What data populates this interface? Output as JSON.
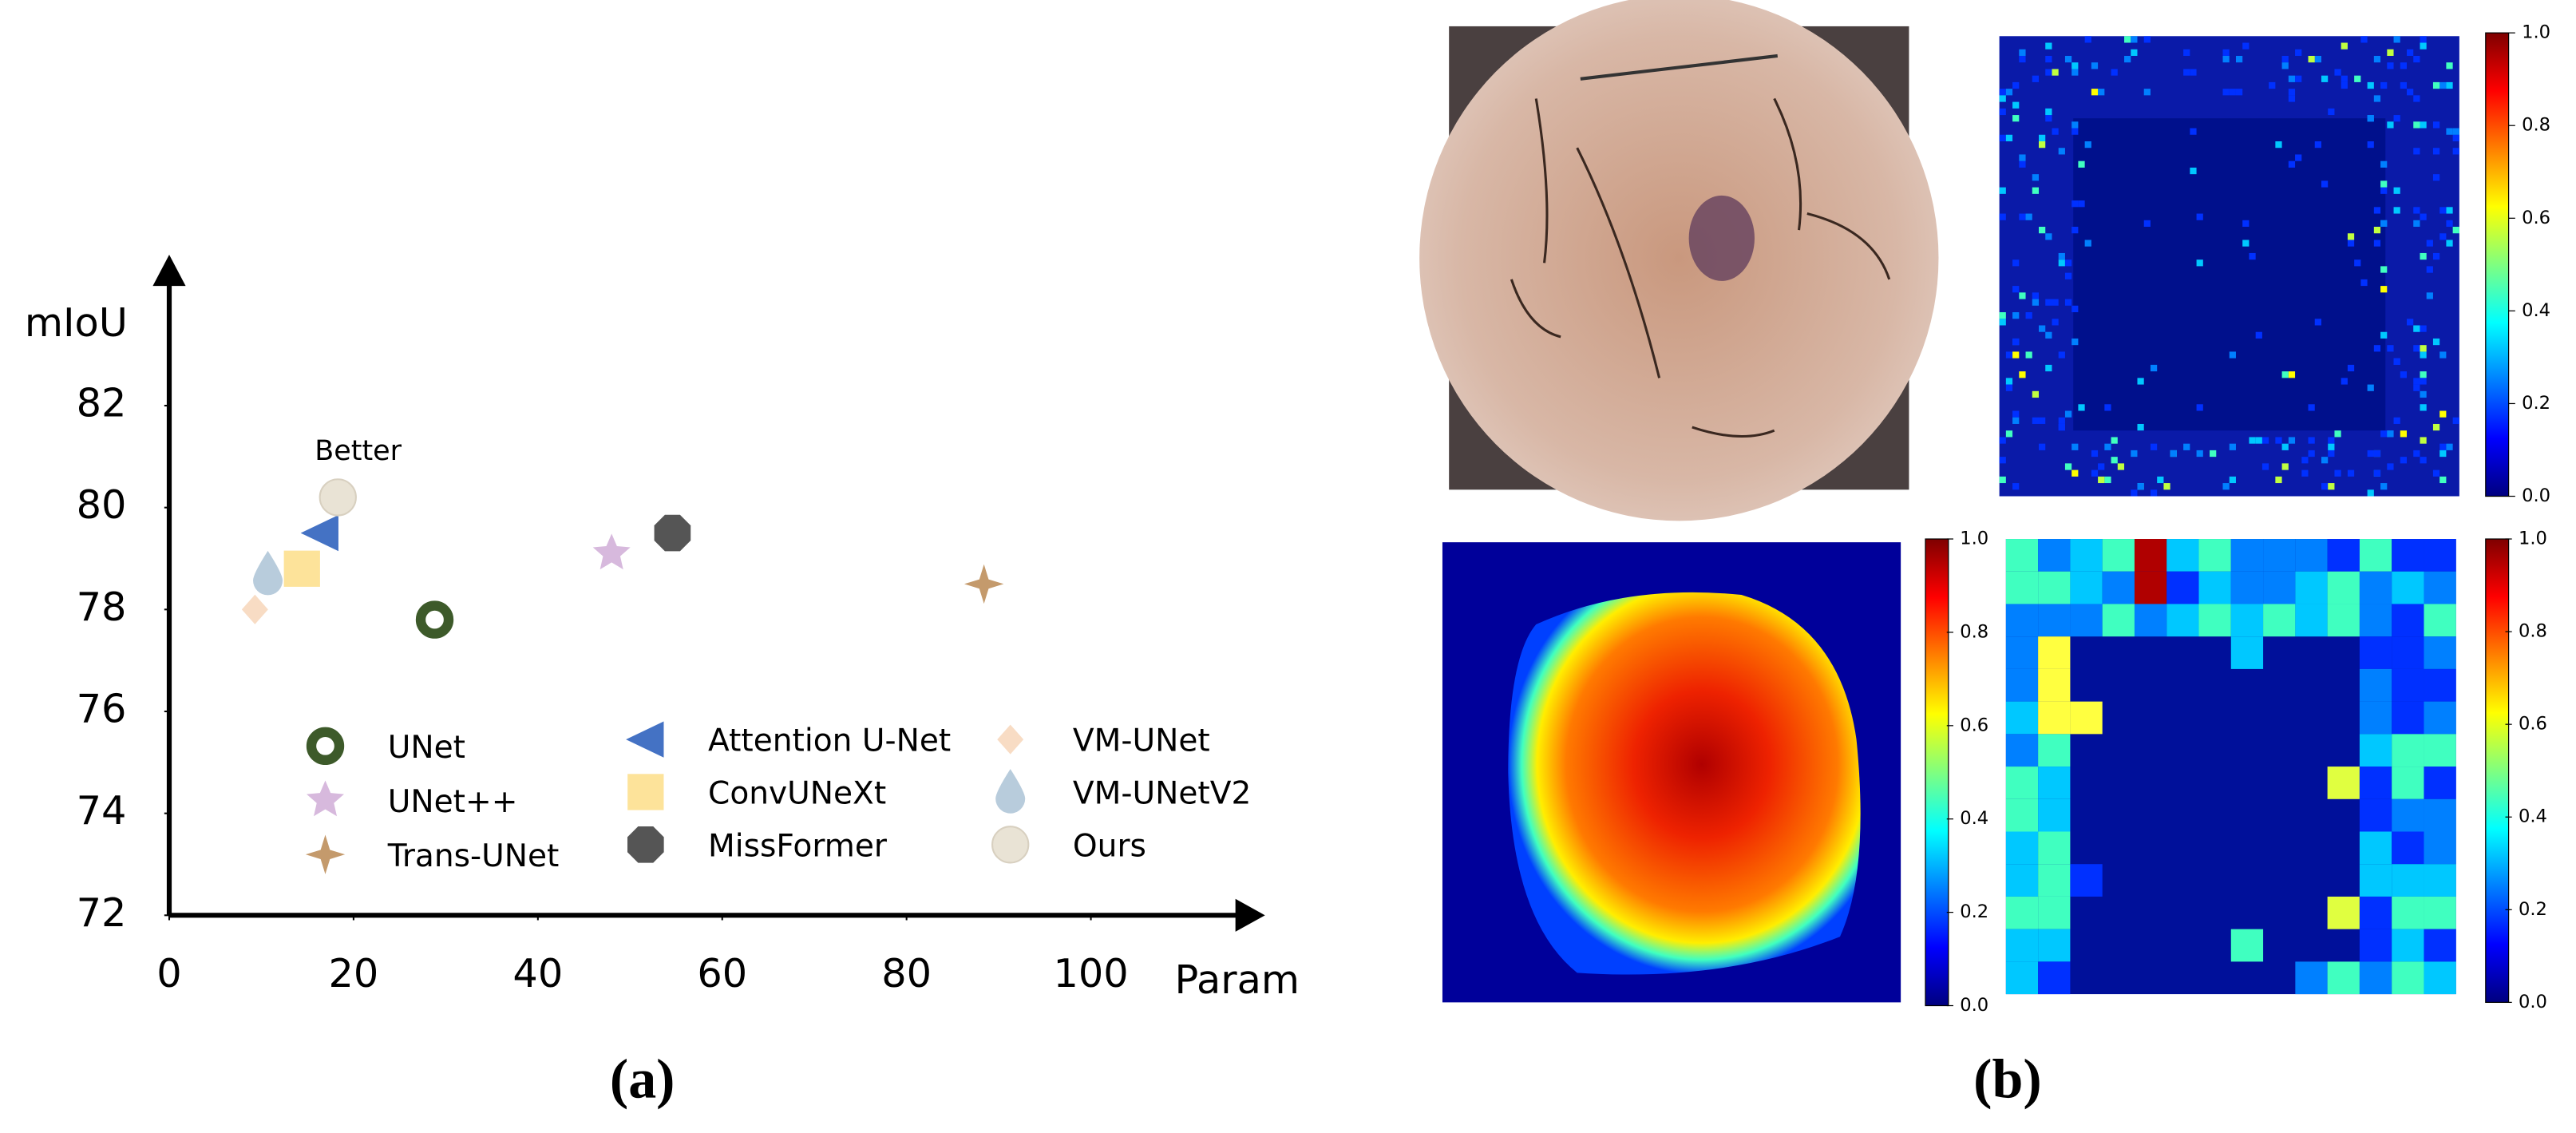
{
  "chart_data": {
    "type": "scatter",
    "annotation": "Better",
    "x_label": "Param",
    "y_label": "mIoU",
    "xlim": [
      0,
      118
    ],
    "ylim": [
      72,
      84.8
    ],
    "xticks": [
      0,
      20,
      40,
      60,
      80,
      100
    ],
    "yticks": [
      72,
      74,
      76,
      78,
      80,
      82
    ],
    "grid": false,
    "series": [
      {
        "name": "UNet",
        "color": "#3d5a2a",
        "marker": "ring",
        "x": [
          28.8
        ],
        "values": [
          77.8
        ]
      },
      {
        "name": "UNet++",
        "color": "#d7b9dd",
        "marker": "star5",
        "x": [
          48
        ],
        "values": [
          79.1
        ]
      },
      {
        "name": "Trans-UNet",
        "color": "#c49a6c",
        "marker": "star4",
        "x": [
          88.4
        ],
        "values": [
          78.5
        ]
      },
      {
        "name": "Attention U-Net",
        "color": "#4472c4",
        "marker": "triangle-left",
        "x": [
          16.4
        ],
        "values": [
          79.5
        ]
      },
      {
        "name": "ConvUNeXt",
        "color": "#fde39a",
        "marker": "square",
        "x": [
          14.4
        ],
        "values": [
          78.8
        ]
      },
      {
        "name": "MissFormer",
        "color": "#555555",
        "marker": "octagon",
        "x": [
          54.6
        ],
        "values": [
          79.5
        ]
      },
      {
        "name": "VM-UNet",
        "color": "#f8dcc4",
        "marker": "diamond",
        "x": [
          9.3
        ],
        "values": [
          78
        ]
      },
      {
        "name": "VM-UNetV2",
        "color": "#b8ccdc",
        "marker": "drop",
        "x": [
          10.7
        ],
        "values": [
          78.7
        ]
      },
      {
        "name": "Ours",
        "color": "#e9e3d5",
        "marker": "circle",
        "x": [
          18.3
        ],
        "values": [
          80.2
        ]
      }
    ]
  },
  "captions": [
    "(a)",
    "(b)"
  ],
  "colorbars": [
    {
      "ticks": [
        "0.0",
        "0.2",
        "0.4",
        "0.6",
        "0.8",
        "1.0"
      ]
    },
    {
      "ticks": [
        "0.0",
        "0.2",
        "0.4",
        "0.6",
        "0.8",
        "1.0"
      ]
    },
    {
      "ticks": [
        "0.0",
        "0.2",
        "0.4",
        "0.6",
        "0.8",
        "1.0"
      ]
    }
  ]
}
